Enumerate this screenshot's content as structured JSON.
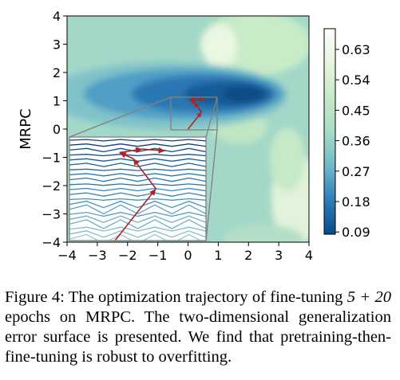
{
  "chart_data": {
    "type": "contour",
    "ylabel": "MRPC",
    "xlabel": "",
    "x_ticks": [
      "−4",
      "−3",
      "−2",
      "−1",
      "0",
      "1",
      "2",
      "3",
      "4"
    ],
    "y_ticks": [
      "4",
      "3",
      "2",
      "1",
      "0",
      "−1",
      "−2",
      "−3",
      "−4"
    ],
    "xlim": [
      -4,
      4
    ],
    "ylim": [
      -4,
      4
    ],
    "colorbar": {
      "ticks": [
        "0.63",
        "0.54",
        "0.45",
        "0.36",
        "0.27",
        "0.18",
        "0.09"
      ],
      "range": [
        0.09,
        0.68
      ]
    },
    "zoom_box": {
      "x": [
        -0.5,
        1.0
      ],
      "y": [
        0.0,
        1.2
      ]
    },
    "trajectory": [
      {
        "x": 0.0,
        "y": 0.0
      },
      {
        "x": 0.45,
        "y": 0.6
      },
      {
        "x": 0.2,
        "y": 0.95
      },
      {
        "x": 0.05,
        "y": 1.02
      },
      {
        "x": 0.3,
        "y": 1.06
      },
      {
        "x": 0.55,
        "y": 1.04
      }
    ]
  },
  "caption": {
    "label": "Figure 4:",
    "text_a": "The optimization trajectory of fine-tuning",
    "math": "5 + 20",
    "text_b": "epochs on MRPC. The two-dimensional generalization error surface is presented. We find that pretraining-then-fine-tuning is robust to overfitting."
  }
}
